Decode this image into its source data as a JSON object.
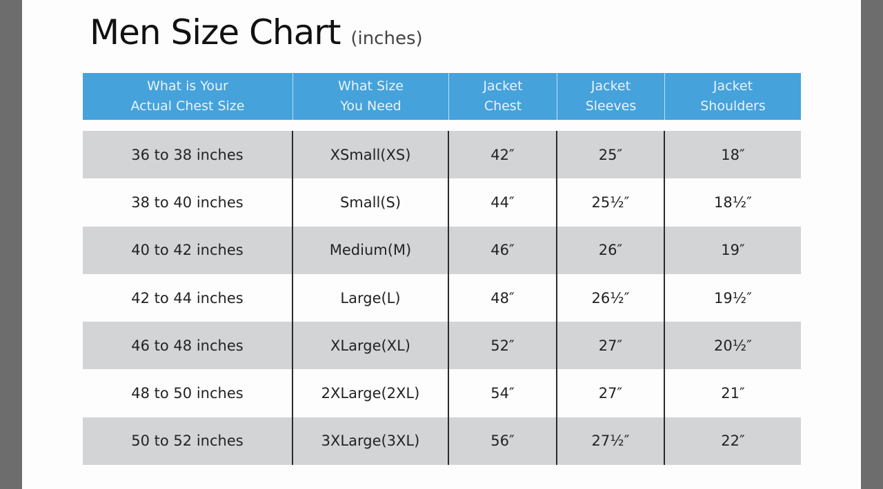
{
  "title": "Men Size Chart",
  "subtitle": "(inches)",
  "headers": [
    "What is Your\nActual Chest Size",
    "What Size\nYou Need",
    "Jacket\nChest",
    "Jacket\nSleeves",
    "Jacket\nShoulders"
  ],
  "rows": [
    [
      "36 to 38 inches",
      "XSmall(XS)",
      "42″",
      "25″",
      "18″"
    ],
    [
      "38 to 40 inches",
      "Small(S)",
      "44″",
      "25½″",
      "18½″"
    ],
    [
      "40 to 42 inches",
      "Medium(M)",
      "46″",
      "26″",
      "19″"
    ],
    [
      "42 to 44 inches",
      "Large(L)",
      "48″",
      "26½″",
      "19½″"
    ],
    [
      "46 to 48 inches",
      "XLarge(XL)",
      "52″",
      "27″",
      "20½″"
    ],
    [
      "48 to 50 inches",
      "2XLarge(2XL)",
      "54″",
      "27″",
      "21″"
    ],
    [
      "50 to 52 inches",
      "3XLarge(3XL)",
      "56″",
      "27½″",
      "22″"
    ]
  ],
  "colors": {
    "header": "#45a2db",
    "alt_row": "#d3d4d6",
    "backdrop": "#6d6d6d"
  }
}
